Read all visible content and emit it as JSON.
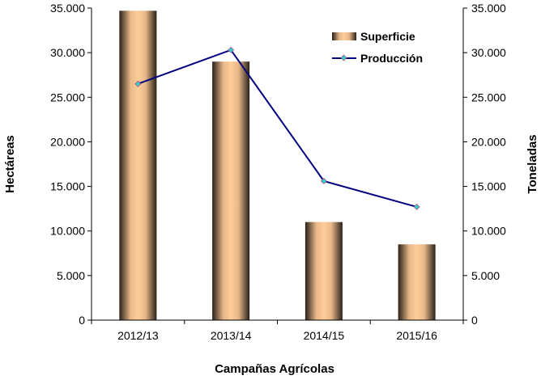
{
  "chart_data": {
    "type": "bar+line",
    "categories": [
      "2012/13",
      "2013/14",
      "2014/15",
      "2015/16"
    ],
    "series": [
      {
        "name": "Superficie",
        "type": "bar",
        "axis": "left",
        "values": [
          34700,
          29000,
          11000,
          8500
        ],
        "color": "#FFCC99"
      },
      {
        "name": "Producción",
        "type": "line",
        "axis": "right",
        "values": [
          26500,
          30300,
          15600,
          12700
        ],
        "color": "#000080",
        "marker_color": "#33CCCC"
      }
    ],
    "xlabel": "Campañas Agrícolas",
    "ylabel": "Hectáreas",
    "y2label": "Toneladas",
    "ylim": [
      0,
      35000
    ],
    "y2lim": [
      0,
      35000
    ],
    "yticks": [
      "0",
      "5.000",
      "10.000",
      "15.000",
      "20.000",
      "25.000",
      "30.000",
      "35.000"
    ],
    "y2ticks": [
      "0",
      "5.000",
      "10.000",
      "15.000",
      "20.000",
      "25.000",
      "30.000",
      "35.000"
    ],
    "grid": false,
    "legend": "top-right"
  }
}
